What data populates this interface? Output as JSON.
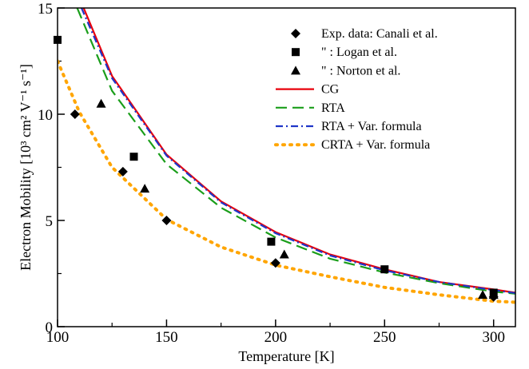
{
  "chart_data": {
    "type": "line",
    "xlabel": "Temperature [K]",
    "ylabel": "Electron Mobility [10³ cm² V⁻¹ s⁻¹]",
    "xlim": [
      100,
      310
    ],
    "ylim": [
      0,
      15
    ],
    "x_ticks": [
      100,
      150,
      200,
      250,
      300
    ],
    "y_ticks": [
      0,
      5,
      10,
      15
    ],
    "x_tick_labels": [
      "100",
      "150",
      "200",
      "250",
      "300"
    ],
    "y_tick_labels": [
      "0",
      "5",
      "10",
      "15"
    ],
    "legend_position": "top-right",
    "legend_labels": {
      "exp_canali": "Exp. data: Canali et al.",
      "exp_logan": "\"      : Logan et al.",
      "exp_norton": "\"      : Norton et al.",
      "cg": "CG",
      "rta": "RTA",
      "rta_var": "RTA + Var. formula",
      "crta_var": "CRTA + Var. formula"
    },
    "scatter_series": [
      {
        "key": "exp_canali",
        "marker": "diamond",
        "points": [
          [
            108,
            10.0
          ],
          [
            130,
            7.3
          ],
          [
            150,
            5.0
          ],
          [
            200,
            3.0
          ],
          [
            300,
            1.4
          ]
        ]
      },
      {
        "key": "exp_logan",
        "marker": "square",
        "points": [
          [
            100,
            13.5
          ],
          [
            135,
            8.0
          ],
          [
            198,
            4.0
          ],
          [
            250,
            2.7
          ],
          [
            300,
            1.6
          ]
        ]
      },
      {
        "key": "exp_norton",
        "marker": "triangle",
        "points": [
          [
            120,
            10.5
          ],
          [
            140,
            6.5
          ],
          [
            204,
            3.4
          ],
          [
            295,
            1.5
          ],
          [
            300,
            1.5
          ]
        ]
      }
    ],
    "line_series": [
      {
        "key": "cg",
        "color": "#e8000b",
        "dash": "",
        "points": [
          [
            112,
            15.0
          ],
          [
            125,
            11.8
          ],
          [
            150,
            8.1
          ],
          [
            175,
            5.9
          ],
          [
            200,
            4.45
          ],
          [
            225,
            3.4
          ],
          [
            250,
            2.7
          ],
          [
            275,
            2.1
          ],
          [
            300,
            1.75
          ],
          [
            310,
            1.6
          ]
        ]
      },
      {
        "key": "rta",
        "color": "#1a9e1a",
        "dash": "14,7",
        "points": [
          [
            109,
            15.0
          ],
          [
            125,
            11.1
          ],
          [
            150,
            7.65
          ],
          [
            175,
            5.6
          ],
          [
            200,
            4.2
          ],
          [
            225,
            3.2
          ],
          [
            250,
            2.55
          ],
          [
            275,
            2.05
          ],
          [
            300,
            1.65
          ],
          [
            310,
            1.55
          ]
        ]
      },
      {
        "key": "rta_var",
        "color": "#1f35c8",
        "dash": "9,4,2,4",
        "points": [
          [
            111,
            15.0
          ],
          [
            125,
            11.7
          ],
          [
            150,
            8.05
          ],
          [
            175,
            5.85
          ],
          [
            200,
            4.4
          ],
          [
            225,
            3.35
          ],
          [
            250,
            2.65
          ],
          [
            275,
            2.1
          ],
          [
            300,
            1.72
          ],
          [
            310,
            1.58
          ]
        ]
      },
      {
        "key": "crta_var",
        "color": "#ffa500",
        "dash": "2,7",
        "points": [
          [
            100,
            12.5
          ],
          [
            110,
            10.1
          ],
          [
            125,
            7.5
          ],
          [
            150,
            5.05
          ],
          [
            175,
            3.75
          ],
          [
            200,
            2.9
          ],
          [
            225,
            2.35
          ],
          [
            250,
            1.85
          ],
          [
            275,
            1.5
          ],
          [
            300,
            1.2
          ],
          [
            310,
            1.15
          ]
        ]
      }
    ]
  }
}
